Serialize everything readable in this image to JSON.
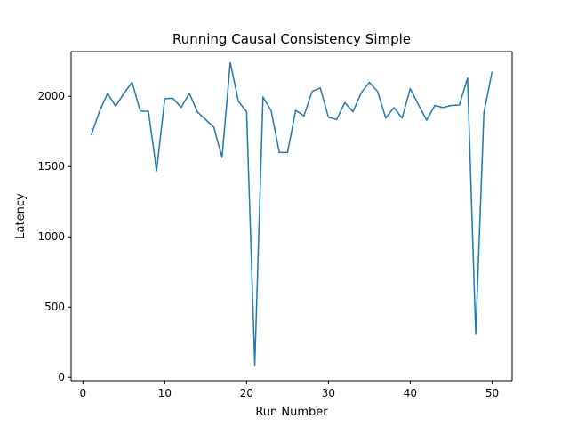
{
  "chart_data": {
    "type": "line",
    "title": "Running Causal Consistency Simple",
    "xlabel": "Run Number",
    "ylabel": "Latency",
    "xlim": [
      -1.45,
      52.45
    ],
    "ylim": [
      -24,
      2318
    ],
    "xticks": [
      0,
      10,
      20,
      30,
      40,
      50
    ],
    "yticks": [
      0,
      500,
      1000,
      1500,
      2000
    ],
    "grid": false,
    "legend": "none",
    "line_color": "#1f77b4",
    "series": [
      {
        "x": [
          1,
          2,
          3,
          4,
          5,
          6,
          7,
          8,
          9,
          10,
          11,
          12,
          13,
          14,
          15,
          16,
          17,
          18,
          19,
          20,
          21,
          22,
          23,
          24,
          25,
          26,
          27,
          28,
          29,
          30,
          31,
          32,
          33,
          34,
          35,
          36,
          37,
          38,
          39,
          40,
          41,
          42,
          43,
          44,
          45,
          46,
          47,
          48,
          49,
          50
        ],
        "values": [
          1722,
          1890,
          2020,
          1930,
          2020,
          2100,
          1895,
          1893,
          1470,
          1984,
          1986,
          1921,
          2021,
          1888,
          1834,
          1780,
          1565,
          2240,
          1965,
          1890,
          87,
          1995,
          1898,
          1600,
          1601,
          1900,
          1860,
          2035,
          2060,
          1850,
          1835,
          1955,
          1890,
          2025,
          2100,
          2035,
          1845,
          1920,
          1845,
          2055,
          1940,
          1830,
          1935,
          1920,
          1935,
          1938,
          2130,
          305,
          1885,
          2175
        ]
      }
    ]
  }
}
